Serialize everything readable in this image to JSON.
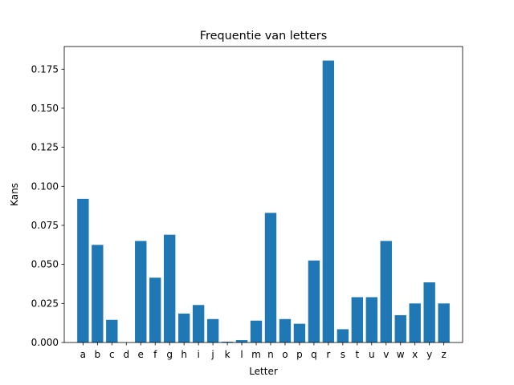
{
  "chart_data": {
    "type": "bar",
    "title": "Frequentie van letters",
    "xlabel": "Letter",
    "ylabel": "Kans",
    "categories": [
      "a",
      "b",
      "c",
      "d",
      "e",
      "f",
      "g",
      "h",
      "i",
      "j",
      "k",
      "l",
      "m",
      "n",
      "o",
      "p",
      "q",
      "r",
      "s",
      "t",
      "u",
      "v",
      "w",
      "x",
      "y",
      "z"
    ],
    "values": [
      0.092,
      0.0625,
      0.0145,
      0.0,
      0.065,
      0.0415,
      0.069,
      0.0185,
      0.024,
      0.015,
      0.0005,
      0.0015,
      0.014,
      0.083,
      0.015,
      0.012,
      0.0525,
      0.1805,
      0.0085,
      0.029,
      0.029,
      0.065,
      0.0175,
      0.025,
      0.0385,
      0.025
    ],
    "y_ticks": [
      "0.000",
      "0.025",
      "0.050",
      "0.075",
      "0.100",
      "0.125",
      "0.150",
      "0.175"
    ],
    "ylim": [
      0,
      0.18951
    ],
    "grid": false,
    "legend": "none",
    "bar_color": "#1f77b4"
  }
}
